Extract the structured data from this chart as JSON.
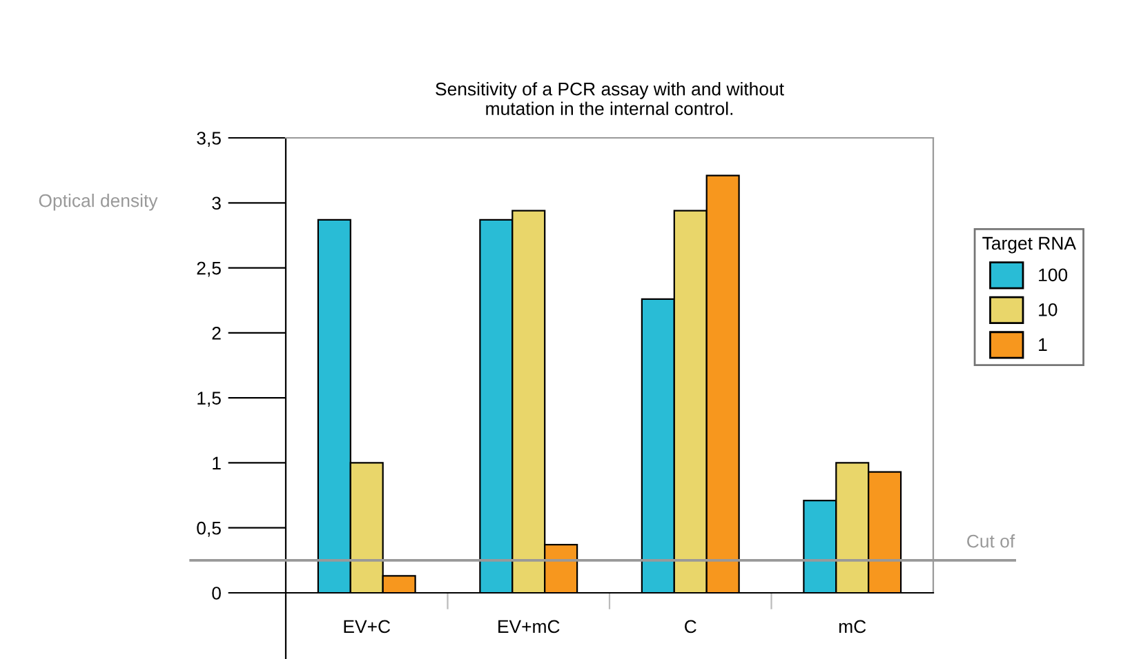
{
  "chart_data": {
    "type": "bar",
    "title": "Sensitivity of a PCR assay with and without\nmutation in the internal control.",
    "ylabel": "Optical density",
    "legend_title": "Target RNA",
    "categories": [
      "EV+C",
      "EV+mC",
      "C",
      "mC"
    ],
    "series": [
      {
        "name": "100",
        "color": "#29bcd6",
        "values": [
          2.87,
          2.87,
          2.26,
          0.71
        ]
      },
      {
        "name": "10",
        "color": "#e9d66a",
        "values": [
          1.0,
          2.94,
          2.94,
          1.0
        ]
      },
      {
        "name": "1",
        "color": "#f7971e",
        "values": [
          0.13,
          0.37,
          3.21,
          0.93
        ]
      }
    ],
    "ylim": [
      0,
      3.5
    ],
    "yticks": [
      0,
      {
        "value": 0.5,
        "label": "0,5"
      },
      1,
      {
        "value": 1.5,
        "label": "1,5"
      },
      2,
      {
        "value": 2.5,
        "label": "2,5"
      },
      3,
      {
        "value": 3.5,
        "label": "3,5"
      }
    ],
    "ref_lines": [
      {
        "axis": "y",
        "value": 0.25,
        "label": "Cut of",
        "color": "#999999"
      }
    ],
    "grid": false,
    "legend": "right"
  }
}
